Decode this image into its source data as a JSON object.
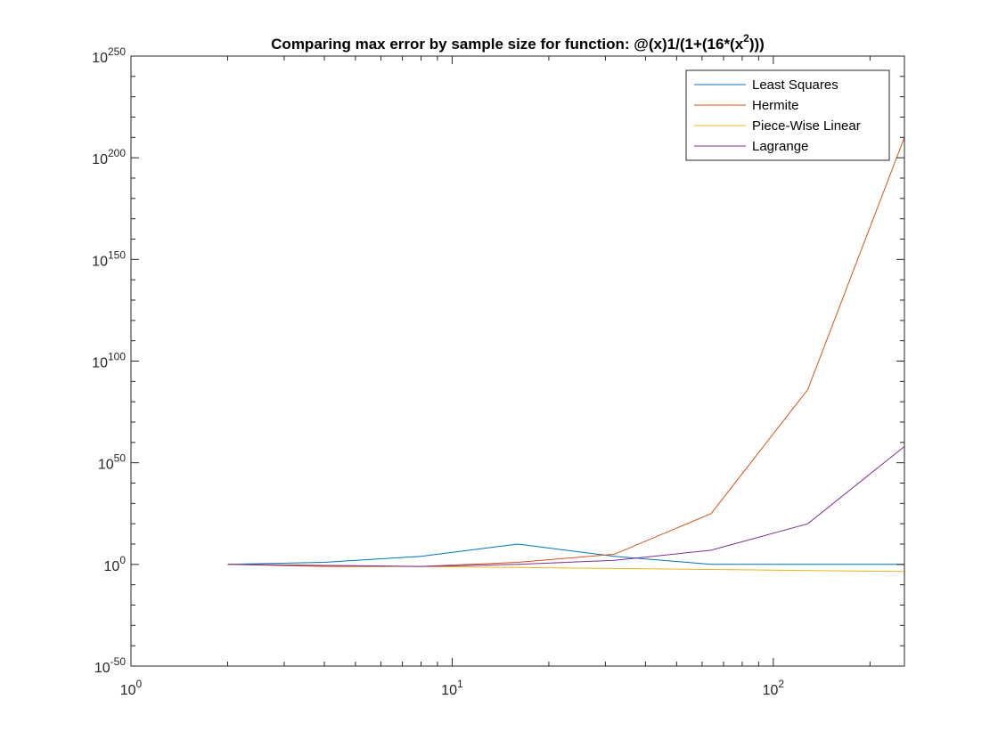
{
  "chart_data": {
    "type": "line",
    "title": "Comparing max error by sample size for function: @(x)1/(1+(16*(x^2)))",
    "title_parts": {
      "main": "Comparing max error by sample size for function: @(x)1/(1+(16*(x",
      "superscript": "2",
      "end": ")))"
    },
    "xlabel": "",
    "ylabel": "",
    "x_scale": "log",
    "y_scale": "log",
    "xlim": [
      1,
      256
    ],
    "ylim": [
      1e-50,
      1e+250
    ],
    "x_ticks": [
      {
        "value": 1,
        "base": "10",
        "exp": "0"
      },
      {
        "value": 10,
        "base": "10",
        "exp": "1"
      },
      {
        "value": 100,
        "base": "10",
        "exp": "2"
      }
    ],
    "y_ticks": [
      {
        "log10": -50,
        "base": "10",
        "exp": "-50"
      },
      {
        "log10": 0,
        "base": "10",
        "exp": "0"
      },
      {
        "log10": 50,
        "base": "10",
        "exp": "50"
      },
      {
        "log10": 100,
        "base": "10",
        "exp": "100"
      },
      {
        "log10": 150,
        "base": "10",
        "exp": "150"
      },
      {
        "log10": 200,
        "base": "10",
        "exp": "200"
      },
      {
        "log10": 250,
        "base": "10",
        "exp": "250"
      }
    ],
    "grid": false,
    "box": true,
    "legend_position": "top-right",
    "x": [
      2,
      4,
      8,
      16,
      32,
      64,
      128,
      256
    ],
    "series": [
      {
        "name": "Least Squares",
        "color": "#0072bd",
        "log10_values": [
          0,
          1,
          4,
          10,
          4,
          0,
          0,
          0
        ]
      },
      {
        "name": "Hermite",
        "color": "#d95319",
        "log10_values": [
          0,
          -1,
          -1,
          1,
          5,
          25,
          86,
          210
        ]
      },
      {
        "name": "Piece-Wise Linear",
        "color": "#edb120",
        "log10_values": [
          0,
          -0.5,
          -1,
          -1.5,
          -2,
          -2.5,
          -3,
          -3.5
        ]
      },
      {
        "name": "Lagrange",
        "color": "#7e2f8e",
        "log10_values": [
          0,
          -0.5,
          -1,
          0,
          2,
          7,
          20,
          58
        ]
      }
    ]
  }
}
